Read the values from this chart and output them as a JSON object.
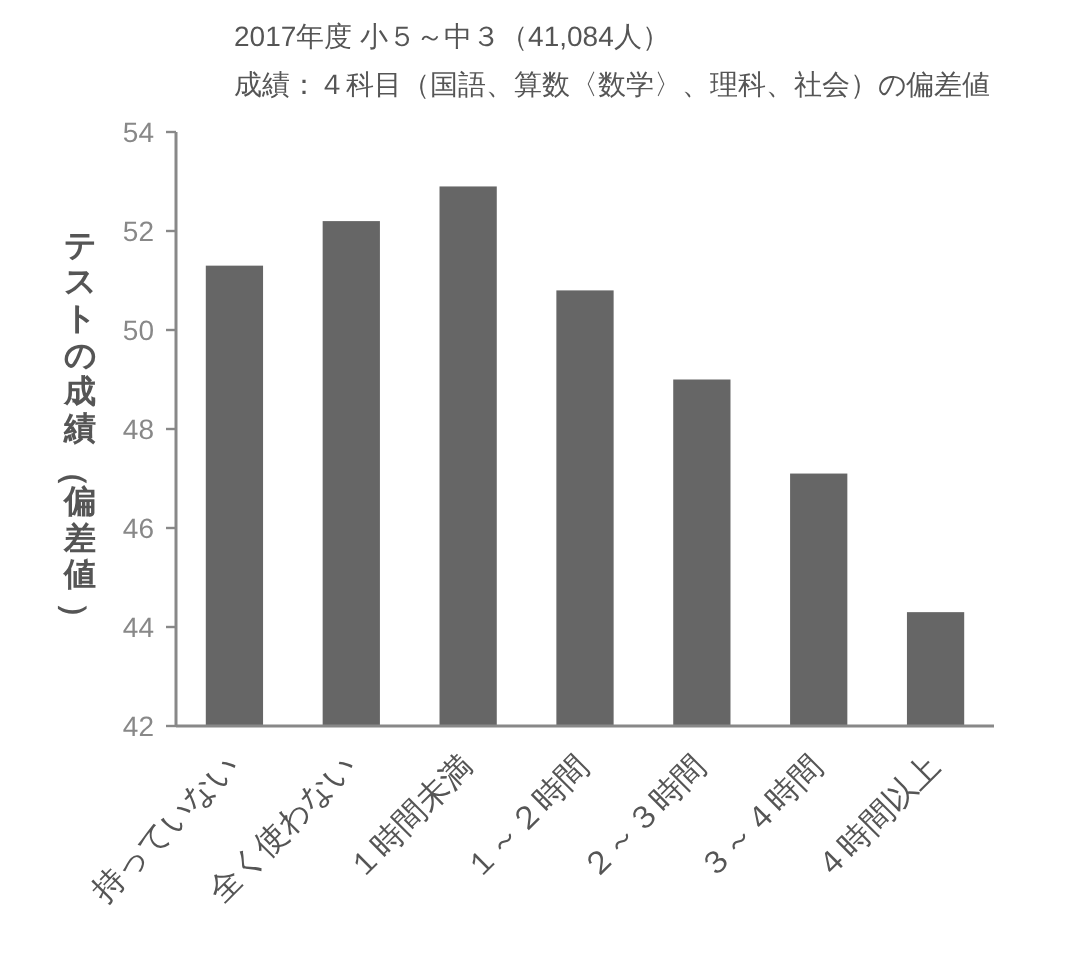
{
  "chart_data": {
    "type": "bar",
    "title": "2017年度 小５～中３（41,084人）",
    "subtitle": "成績：４科目（国語、算数〈数学〉、理科、社会）の偏差値",
    "ylabel": "テストの成績（偏差値）",
    "categories": [
      "持っていない",
      "全く使わない",
      "１時間未満",
      "１～２時間",
      "２～３時間",
      "３～４時間",
      "４時間以上"
    ],
    "values": [
      51.3,
      52.2,
      52.9,
      50.8,
      49.0,
      47.1,
      44.3
    ],
    "color": "#666666",
    "ylim": [
      42,
      54
    ],
    "yticks": [
      42,
      44,
      46,
      48,
      50,
      52,
      54
    ]
  }
}
